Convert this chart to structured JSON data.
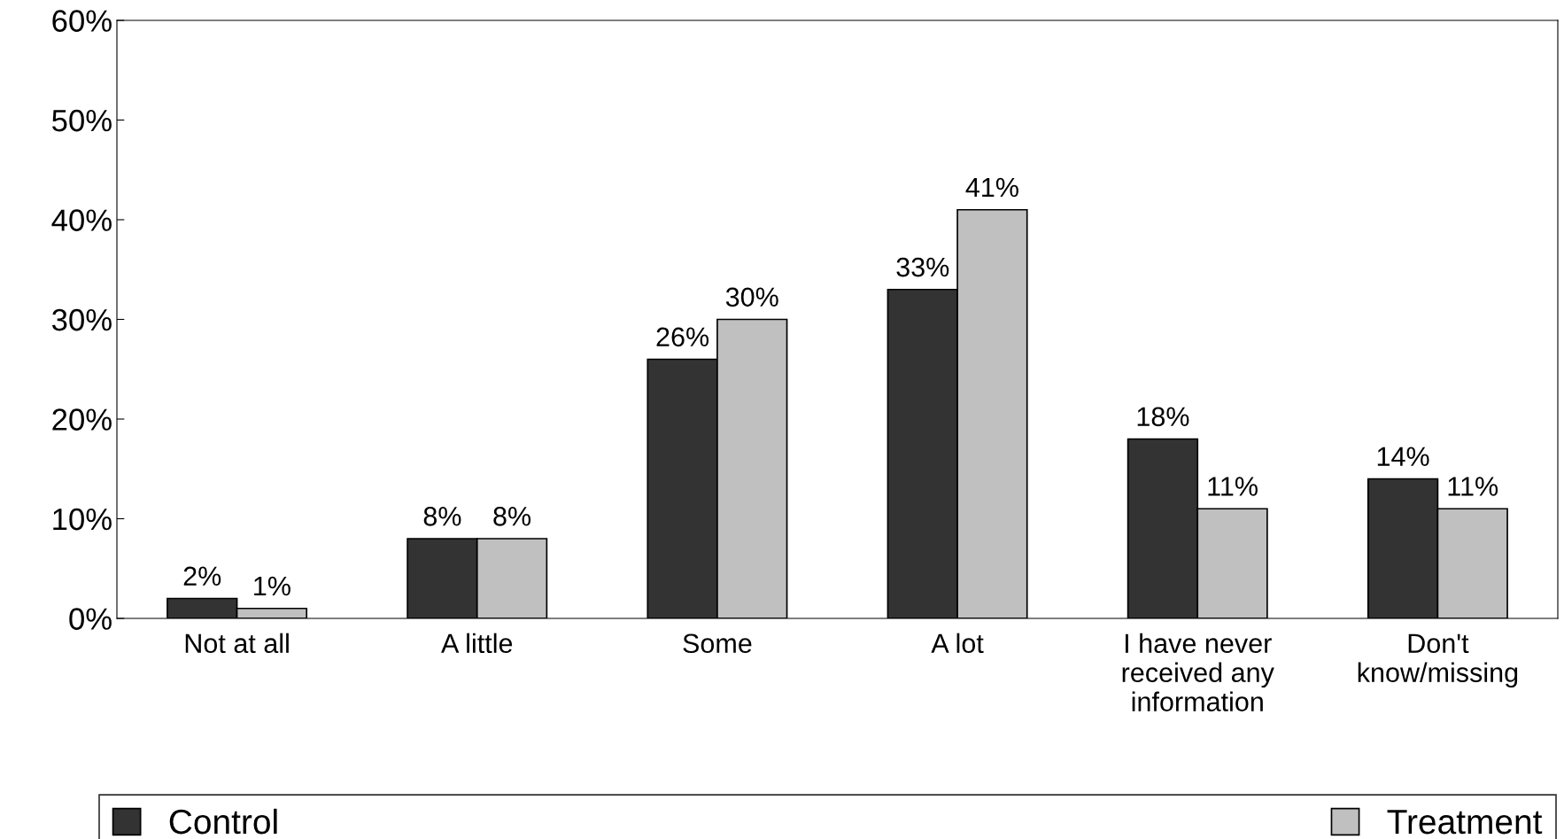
{
  "chart_data": {
    "type": "bar",
    "categories": [
      "Not at all",
      "A little",
      "Some",
      "A lot",
      "I have never\nreceived any\ninformation",
      "Don't\nknow/missing"
    ],
    "series": [
      {
        "name": "Control",
        "color": "#333333",
        "values": [
          2,
          8,
          26,
          33,
          18,
          14
        ],
        "value_labels": [
          "2%",
          "8%",
          "26%",
          "33%",
          "18%",
          "14%"
        ]
      },
      {
        "name": "Treatment",
        "color": "#c0c0c0",
        "values": [
          1,
          8,
          30,
          41,
          11,
          11
        ],
        "value_labels": [
          "1%",
          "8%",
          "30%",
          "41%",
          "11%",
          "11%"
        ]
      }
    ],
    "ylim": [
      0,
      60
    ],
    "yticks": [
      {
        "value": 0,
        "label": "0%"
      },
      {
        "value": 10,
        "label": "10%"
      },
      {
        "value": 20,
        "label": "20%"
      },
      {
        "value": 30,
        "label": "30%"
      },
      {
        "value": 40,
        "label": "40%"
      },
      {
        "value": 50,
        "label": "50%"
      },
      {
        "value": 60,
        "label": "60%"
      }
    ],
    "grid": false,
    "legend": "bottom"
  }
}
